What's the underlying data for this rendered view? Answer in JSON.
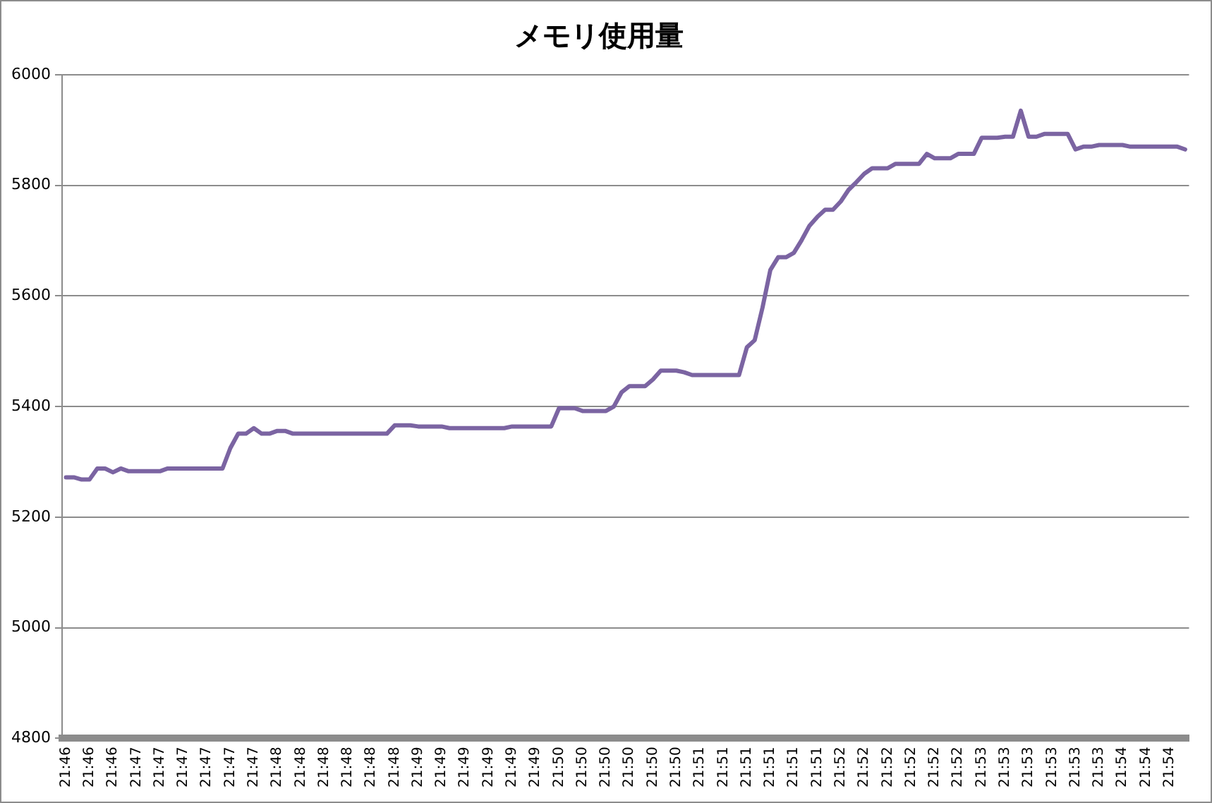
{
  "chart_data": {
    "type": "line",
    "title": "メモリ使用量",
    "categories": [
      "21:46",
      null,
      null,
      "21:46",
      null,
      null,
      "21:46",
      null,
      null,
      "21:47",
      null,
      null,
      "21:47",
      null,
      null,
      "21:47",
      null,
      null,
      "21:47",
      null,
      null,
      "21:47",
      null,
      null,
      "21:47",
      null,
      null,
      "21:48",
      null,
      null,
      "21:48",
      null,
      null,
      "21:48",
      null,
      null,
      "21:48",
      null,
      null,
      "21:48",
      null,
      null,
      "21:48",
      null,
      null,
      "21:49",
      null,
      null,
      "21:49",
      null,
      null,
      "21:49",
      null,
      null,
      "21:49",
      null,
      null,
      "21:49",
      null,
      null,
      "21:49",
      null,
      null,
      "21:50",
      null,
      null,
      "21:50",
      null,
      null,
      "21:50",
      null,
      null,
      "21:50",
      null,
      null,
      "21:50",
      null,
      null,
      "21:50",
      null,
      null,
      "21:51",
      null,
      null,
      "21:51",
      null,
      null,
      "21:51",
      null,
      null,
      "21:51",
      null,
      null,
      "21:51",
      null,
      null,
      "21:51",
      null,
      null,
      "21:52",
      null,
      null,
      "21:52",
      null,
      null,
      "21:52",
      null,
      null,
      "21:52",
      null,
      null,
      "21:52",
      null,
      null,
      "21:52",
      null,
      null,
      "21:53",
      null,
      null,
      "21:53",
      null,
      null,
      "21:53",
      null,
      null,
      "21:53",
      null,
      null,
      "21:53",
      null,
      null,
      "21:53",
      null,
      null,
      "21:54",
      null,
      null,
      "21:54",
      null,
      null,
      "21:54",
      null,
      null
    ],
    "series": [
      {
        "color": "#7b64a2",
        "values": [
          5272,
          5272,
          5268,
          5268,
          5288,
          5288,
          5281,
          5288,
          5283,
          5283,
          5283,
          5283,
          5283,
          5288,
          5288,
          5288,
          5288,
          5288,
          5288,
          5288,
          5288,
          5325,
          5351,
          5351,
          5361,
          5351,
          5351,
          5356,
          5356,
          5351,
          5351,
          5351,
          5351,
          5351,
          5351,
          5351,
          5351,
          5351,
          5351,
          5351,
          5351,
          5351,
          5366,
          5366,
          5366,
          5364,
          5364,
          5364,
          5364,
          5361,
          5361,
          5361,
          5361,
          5361,
          5361,
          5361,
          5361,
          5364,
          5364,
          5364,
          5364,
          5364,
          5364,
          5397,
          5397,
          5397,
          5392,
          5392,
          5392,
          5392,
          5400,
          5426,
          5437,
          5437,
          5437,
          5449,
          5465,
          5465,
          5465,
          5462,
          5457,
          5457,
          5457,
          5457,
          5457,
          5457,
          5457,
          5507,
          5520,
          5579,
          5647,
          5670,
          5670,
          5678,
          5701,
          5727,
          5743,
          5756,
          5756,
          5771,
          5792,
          5806,
          5821,
          5831,
          5831,
          5831,
          5839,
          5839,
          5839,
          5839,
          5857,
          5849,
          5849,
          5849,
          5857,
          5857,
          5857,
          5886,
          5886,
          5886,
          5888,
          5888,
          5935,
          5888,
          5888,
          5893,
          5893,
          5893,
          5893,
          5865,
          5870,
          5870,
          5873,
          5873,
          5873,
          5873,
          5870,
          5870,
          5870,
          5870,
          5870,
          5870,
          5870,
          5865
        ]
      }
    ],
    "ylim": [
      4800,
      6000
    ],
    "yticks": [
      4800,
      5000,
      5200,
      5400,
      5600,
      5800,
      6000
    ],
    "grid": "y",
    "legend": false,
    "marker": "none",
    "line_style": "solid"
  }
}
